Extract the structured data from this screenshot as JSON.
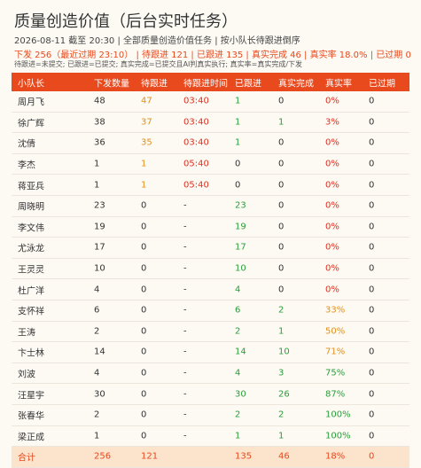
{
  "header": {
    "title": "质量创造价值（后台实时任务）",
    "subtitle": "2026-08-11 截至 20:30 | 全部质量创造价值任务 | 按小队长待跟进倒序",
    "stats": "下发 256（最近过期 23:10） | 待跟进 121 | 已跟进 135 | 真实完成 46 | 真实率 18.0% | 已过期 0",
    "legend": "待跟进=未提交; 已跟进=已提交; 真实完成=已提交且AI判真实执行; 真实率=真实完成/下发"
  },
  "table": {
    "columns": [
      "小队长",
      "下发数量",
      "待跟进",
      "待跟进时间",
      "已跟进",
      "真实完成",
      "真实率",
      "已过期"
    ],
    "rows": [
      [
        "周月飞",
        "48",
        "47",
        "03:40",
        "1",
        "0",
        "0%",
        "0"
      ],
      [
        "徐广辉",
        "38",
        "37",
        "03:40",
        "1",
        "1",
        "3%",
        "0"
      ],
      [
        "沈倩",
        "36",
        "35",
        "03:40",
        "1",
        "0",
        "0%",
        "0"
      ],
      [
        "李杰",
        "1",
        "1",
        "05:40",
        "0",
        "0",
        "0%",
        "0"
      ],
      [
        "蒋亚兵",
        "1",
        "1",
        "05:40",
        "0",
        "0",
        "0%",
        "0"
      ],
      [
        "周晓明",
        "23",
        "0",
        "-",
        "23",
        "0",
        "0%",
        "0"
      ],
      [
        "李文伟",
        "19",
        "0",
        "-",
        "19",
        "0",
        "0%",
        "0"
      ],
      [
        "尤泳龙",
        "17",
        "0",
        "-",
        "17",
        "0",
        "0%",
        "0"
      ],
      [
        "王灵灵",
        "10",
        "0",
        "-",
        "10",
        "0",
        "0%",
        "0"
      ],
      [
        "杜广洋",
        "4",
        "0",
        "-",
        "4",
        "0",
        "0%",
        "0"
      ],
      [
        "支怀祥",
        "6",
        "0",
        "-",
        "6",
        "2",
        "33%",
        "0"
      ],
      [
        "王涛",
        "2",
        "0",
        "-",
        "2",
        "1",
        "50%",
        "0"
      ],
      [
        "卞士林",
        "14",
        "0",
        "-",
        "14",
        "10",
        "71%",
        "0"
      ],
      [
        "刘波",
        "4",
        "0",
        "-",
        "4",
        "3",
        "75%",
        "0"
      ],
      [
        "汪星宇",
        "30",
        "0",
        "-",
        "30",
        "26",
        "87%",
        "0"
      ],
      [
        "张春华",
        "2",
        "0",
        "-",
        "2",
        "2",
        "100%",
        "0"
      ],
      [
        "梁正成",
        "1",
        "0",
        "-",
        "1",
        "1",
        "100%",
        "0"
      ]
    ],
    "total": [
      "合计",
      "256",
      "121",
      "",
      "135",
      "46",
      "18%",
      "0"
    ]
  }
}
